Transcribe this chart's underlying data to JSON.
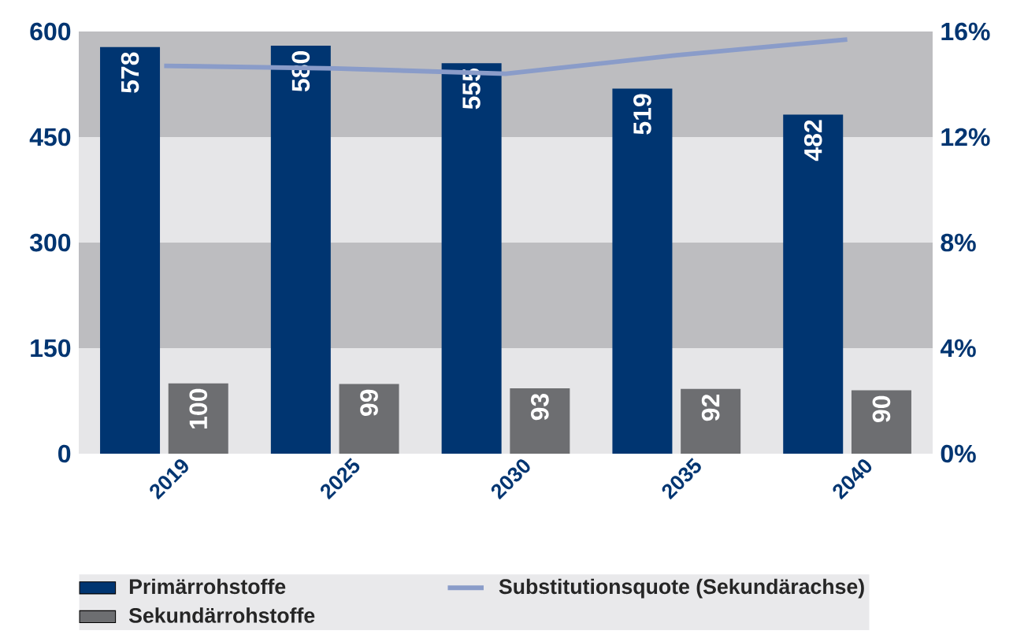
{
  "chart_data": {
    "type": "bar",
    "categories": [
      "2019",
      "2025",
      "2030",
      "2035",
      "2040"
    ],
    "series": [
      {
        "name": "Primärrohstoffe",
        "type": "bar",
        "color": "#003571",
        "values": [
          578,
          580,
          555,
          519,
          482
        ],
        "value_labels": [
          "578",
          "580",
          "555",
          "519",
          "482"
        ]
      },
      {
        "name": "Sekundärrohstoffe",
        "type": "bar",
        "color": "#6d6e71",
        "values": [
          100,
          99,
          93,
          92,
          90
        ],
        "value_labels": [
          "100",
          "99",
          "93",
          "92",
          "90"
        ]
      },
      {
        "name": "Substitutionsquote (Sekundärachse)",
        "type": "line",
        "axis": "y2",
        "color": "#8a9cc9",
        "values": [
          14.7,
          14.6,
          14.4,
          15.1,
          15.7
        ]
      }
    ],
    "ylim": [
      0,
      600
    ],
    "yticks": [
      0,
      150,
      300,
      450,
      600
    ],
    "y2lim": [
      0,
      16
    ],
    "y2ticks": [
      {
        "value": 0,
        "label": "0%"
      },
      {
        "value": 4,
        "label": "4%"
      },
      {
        "value": 8,
        "label": "8%"
      },
      {
        "value": 12,
        "label": "12%"
      },
      {
        "value": 16,
        "label": "16%"
      }
    ],
    "bands": [
      {
        "axis": "y",
        "from": 0,
        "to": 150,
        "color": "#e6e6e8"
      },
      {
        "axis": "y",
        "from": 150,
        "to": 300,
        "color": "#bdbdc0"
      },
      {
        "axis": "y",
        "from": 300,
        "to": 450,
        "color": "#e6e6e8"
      },
      {
        "axis": "y",
        "from": 450,
        "to": 600,
        "color": "#bdbdc0"
      }
    ],
    "legend": "bottom"
  }
}
